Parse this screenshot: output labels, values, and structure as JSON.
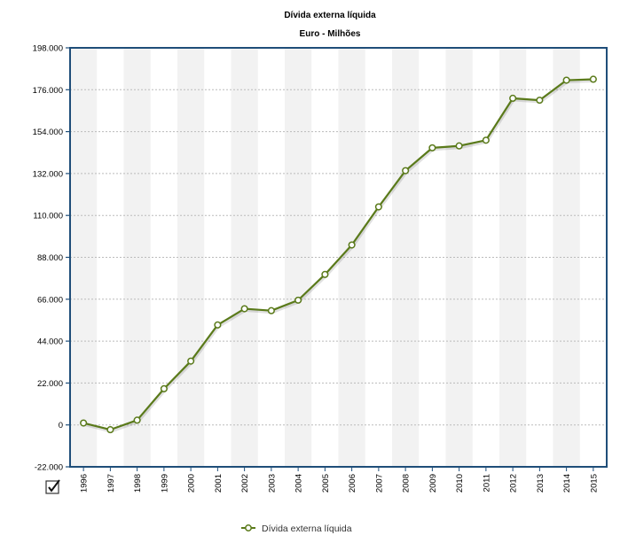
{
  "chart_data": {
    "type": "line",
    "title": "Dívida externa líquida",
    "subtitle": "Euro - Milhões",
    "xlabel": "",
    "ylabel": "",
    "categories": [
      "1996",
      "1997",
      "1998",
      "1999",
      "2000",
      "2001",
      "2002",
      "2003",
      "2004",
      "2005",
      "2006",
      "2007",
      "2008",
      "2009",
      "2010",
      "2011",
      "2012",
      "2013",
      "2014",
      "2015"
    ],
    "series": [
      {
        "name": "Dívida externa líquida",
        "values": [
          1000,
          -2500,
          2500,
          19000,
          33500,
          52500,
          61000,
          60000,
          65500,
          79000,
          94500,
          114500,
          133500,
          145500,
          146500,
          149500,
          171500,
          170500,
          181000,
          181500
        ],
        "color": "#5a7a1a"
      }
    ],
    "ylim": [
      -22000,
      198000
    ],
    "yticks": [
      "198.000",
      "176.000",
      "154.000",
      "132.000",
      "110.000",
      "88.000",
      "66.000",
      "44.000",
      "22.000",
      "0",
      "-22.000"
    ],
    "ytick_values": [
      198000,
      176000,
      154000,
      132000,
      110000,
      88000,
      66000,
      44000,
      22000,
      0,
      -22000
    ],
    "grid": true,
    "legend_position": "bottom-center",
    "colors": {
      "line": "#5a7a1a",
      "frame": "#1f4e79",
      "band": "#f2f2f2",
      "marker_fill": "#ffffff"
    }
  },
  "legend": {
    "label": "Dívida externa líquida",
    "toggle_icon": "checkbox-checked-icon"
  }
}
